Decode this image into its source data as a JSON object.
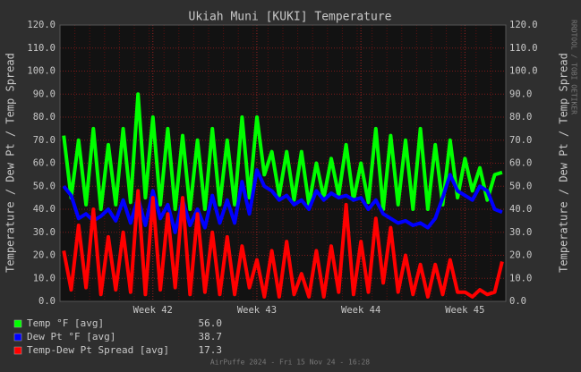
{
  "chart_data": {
    "type": "line",
    "title": "Ukiah Muni [KUKI] Temperature",
    "y_label": "Temperature / Dew Pt / Temp Spread",
    "y2_label": "Temperature / Dew Pt / Temp Spread",
    "side_note": "RRDTOOL / TOBI OETIKER",
    "footer": "AirPuffe 2024 - Fri 15 Nov 24 - 16:28",
    "categories": [
      null,
      null,
      null,
      null,
      null,
      null,
      null,
      null,
      null,
      null,
      null,
      null,
      "Week 42",
      null,
      null,
      null,
      null,
      null,
      null,
      null,
      null,
      null,
      null,
      null,
      null,
      null,
      "Week 43",
      null,
      null,
      null,
      null,
      null,
      null,
      null,
      null,
      null,
      null,
      null,
      null,
      null,
      "Week 44",
      null,
      null,
      null,
      null,
      null,
      null,
      null,
      null,
      null,
      null,
      null,
      null,
      null,
      "Week 45",
      null,
      null,
      null,
      null,
      null
    ],
    "series": [
      {
        "name": "Temp °F [avg]",
        "color": "#00ff00",
        "current": "56.0",
        "values": [
          72,
          45,
          70,
          42,
          75,
          40,
          68,
          42,
          75,
          43,
          90,
          45,
          80,
          42,
          75,
          40,
          72,
          40,
          70,
          40,
          75,
          42,
          70,
          42,
          80,
          45,
          80,
          55,
          65,
          46,
          65,
          44,
          65,
          42,
          60,
          45,
          62,
          46,
          68,
          44,
          60,
          43,
          75,
          40,
          72,
          42,
          70,
          40,
          75,
          40,
          68,
          42,
          70,
          45,
          62,
          48,
          58,
          44,
          55,
          56
        ]
      },
      {
        "name": "Dew Pt °F [avg]",
        "color": "#0000ff",
        "current": "38.7",
        "values": [
          50,
          46,
          36,
          38,
          35,
          37,
          40,
          35,
          44,
          34,
          45,
          33,
          48,
          36,
          42,
          30,
          44,
          33,
          40,
          32,
          46,
          34,
          44,
          34,
          52,
          38,
          57,
          50,
          48,
          44,
          46,
          42,
          44,
          40,
          48,
          44,
          47,
          45,
          46,
          44,
          45,
          40,
          44,
          38,
          36,
          34,
          35,
          33,
          34,
          32,
          36,
          45,
          55,
          48,
          46,
          44,
          50,
          48,
          40,
          38.7
        ]
      },
      {
        "name": "Temp-Dew Pt Spread [avg]",
        "color": "#ff0000",
        "current": "17.3",
        "values": [
          22,
          5,
          33,
          6,
          40,
          3,
          28,
          5,
          30,
          4,
          48,
          3,
          45,
          5,
          38,
          6,
          45,
          3,
          38,
          4,
          30,
          3,
          28,
          3,
          24,
          6,
          18,
          2,
          22,
          2,
          26,
          3,
          12,
          2,
          22,
          2,
          24,
          4,
          42,
          3,
          26,
          4,
          36,
          8,
          32,
          4,
          20,
          3,
          16,
          2,
          16,
          3,
          18,
          4,
          4,
          2,
          5,
          3,
          4,
          17.3
        ]
      }
    ],
    "ylim": [
      0,
      120
    ],
    "yticks": [
      {
        "value": 0,
        "label": "0.0"
      },
      {
        "value": 10,
        "label": "10.0"
      },
      {
        "value": 20,
        "label": "20.0"
      },
      {
        "value": 30,
        "label": "30.0"
      },
      {
        "value": 40,
        "label": "40.0"
      },
      {
        "value": 50,
        "label": "50.0"
      },
      {
        "value": 60,
        "label": "60.0"
      },
      {
        "value": 70,
        "label": "70.0"
      },
      {
        "value": 80,
        "label": "80.0"
      },
      {
        "value": 90,
        "label": "90.0"
      },
      {
        "value": 100,
        "label": "100.0"
      },
      {
        "value": 110,
        "label": "110.0"
      },
      {
        "value": 120,
        "label": "120.0"
      }
    ],
    "y2lim": [
      0,
      120
    ],
    "y2ticks": [
      {
        "value": 0,
        "label": "0.0"
      },
      {
        "value": 10,
        "label": "10.0"
      },
      {
        "value": 20,
        "label": "20.0"
      },
      {
        "value": 30,
        "label": "30.0"
      },
      {
        "value": 40,
        "label": "40.0"
      },
      {
        "value": 50,
        "label": "50.0"
      },
      {
        "value": 60,
        "label": "60.0"
      },
      {
        "value": 70,
        "label": "70.0"
      },
      {
        "value": 80,
        "label": "80.0"
      },
      {
        "value": 90,
        "label": "90.0"
      },
      {
        "value": 100,
        "label": "100.0"
      },
      {
        "value": 110,
        "label": "110.0"
      },
      {
        "value": 120,
        "label": "120.0"
      }
    ],
    "grid": true
  }
}
